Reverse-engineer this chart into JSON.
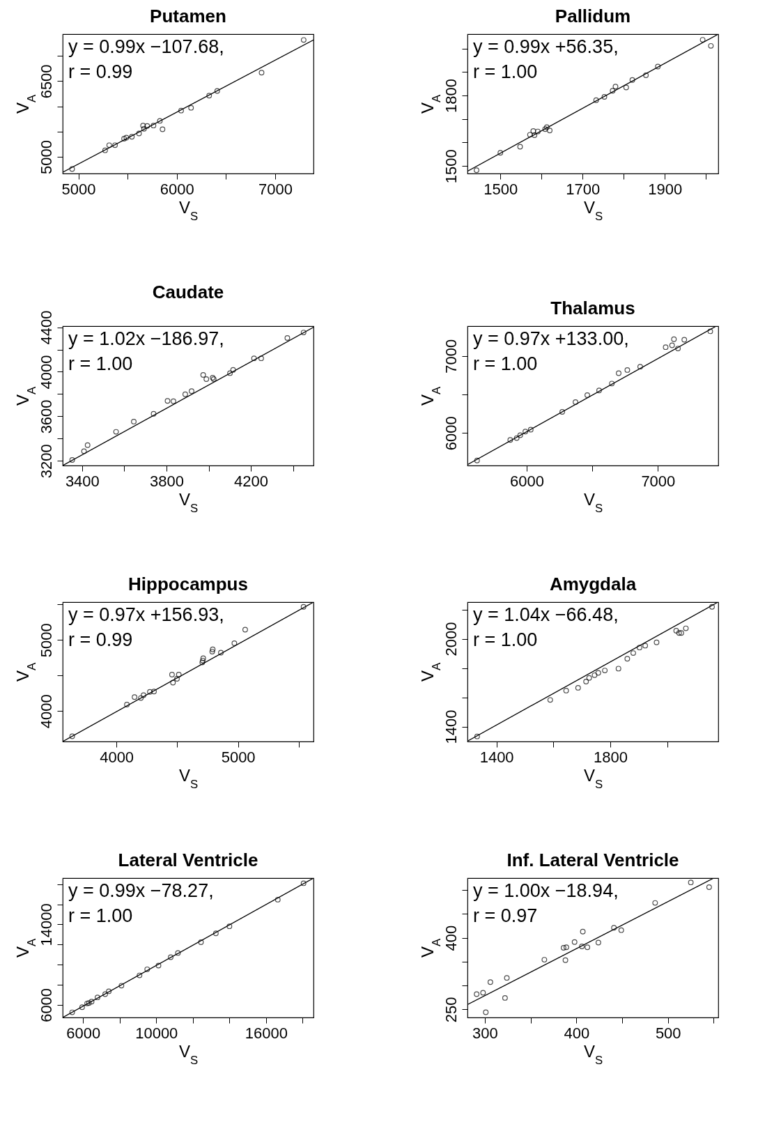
{
  "chart_data": [
    {
      "type": "scatter",
      "title": "Putamen",
      "xlabel": "V$_{S}$",
      "ylabel": "V$_{A}$",
      "annotations": [
        "y = 0.99x −107.68,",
        "r = 0.99"
      ],
      "xlim": [
        4840,
        7390
      ],
      "ylim": [
        4670,
        7430
      ],
      "xticks": [
        5000,
        {
          "value": 5500,
          "label": null
        },
        6000,
        {
          "value": 6500,
          "label": null
        },
        7000
      ],
      "yticks": [
        5000,
        {
          "value": 5500,
          "label": null
        },
        {
          "value": 6000,
          "label": null
        },
        6500,
        {
          "value": 7000,
          "label": null
        }
      ],
      "series": [
        {
          "type": "scatter",
          "marker": "circle",
          "color": "#000000",
          "x": [
            4936,
            5271,
            5313,
            5372,
            5464,
            5487,
            5543,
            5616,
            5657,
            5667,
            5699,
            5763,
            5828,
            5855,
            6044,
            6145,
            6329,
            6411,
            6862,
            7290
          ],
          "values": [
            4759,
            5130,
            5231,
            5231,
            5361,
            5380,
            5398,
            5463,
            5620,
            5556,
            5611,
            5620,
            5713,
            5546,
            5917,
            5972,
            6213,
            6306,
            6667,
            7315
          ]
        },
        {
          "type": "line",
          "color": "#000000",
          "x": [
            4840,
            7390
          ],
          "values": [
            4694,
            7315
          ]
        }
      ]
    },
    {
      "type": "scatter",
      "title": "Pallidum",
      "xlabel": "V$_{S}$",
      "ylabel": "V$_{A}$",
      "annotations": [
        "y = 0.99x +56.35,",
        "r = 1.00"
      ],
      "xlim": [
        1420,
        2030
      ],
      "ylim": [
        1468,
        2061
      ],
      "xticks": [
        1500,
        {
          "value": 1600,
          "label": null
        },
        1700,
        {
          "value": 1800,
          "label": null
        },
        1900,
        {
          "value": 2000,
          "label": null
        }
      ],
      "yticks": [
        1500,
        {
          "value": 1600,
          "label": null
        },
        {
          "value": 1700,
          "label": null
        },
        1800,
        {
          "value": 1900,
          "label": null
        },
        {
          "value": 2000,
          "label": null
        }
      ],
      "series": [
        {
          "type": "scatter",
          "marker": "circle",
          "color": "#000000",
          "x": [
            1442,
            1500,
            1548,
            1572,
            1580,
            1583,
            1591,
            1609,
            1613,
            1620,
            1733,
            1753,
            1773,
            1780,
            1806,
            1821,
            1854,
            1883,
            1992,
            2012
          ],
          "values": [
            1482,
            1556,
            1582,
            1633,
            1649,
            1631,
            1647,
            1657,
            1665,
            1651,
            1780,
            1794,
            1820,
            1838,
            1834,
            1866,
            1886,
            1923,
            2037,
            2011
          ]
        },
        {
          "type": "line",
          "color": "#000000",
          "x": [
            1420,
            2030
          ],
          "values": [
            1478,
            2061
          ]
        }
      ]
    },
    {
      "type": "scatter",
      "title": "Caudate",
      "xlabel": "V$_{S}$",
      "ylabel": "V$_{A}$",
      "annotations": [
        "y = 1.02x −186.97,",
        "r = 1.00"
      ],
      "xlim": [
        3308,
        4497
      ],
      "ylim": [
        3158,
        4410
      ],
      "xticks": [
        3400,
        {
          "value": 3600,
          "label": null
        },
        3800,
        {
          "value": 4000,
          "label": null
        },
        4200,
        {
          "value": 4400,
          "label": null
        }
      ],
      "yticks": [
        3200,
        {
          "value": 3400,
          "label": null
        },
        3600,
        {
          "value": 3800,
          "label": null
        },
        4000,
        {
          "value": 4200,
          "label": null
        },
        4400
      ],
      "series": [
        {
          "type": "scatter",
          "marker": "circle",
          "color": "#000000",
          "x": [
            3353,
            3409,
            3426,
            3561,
            3645,
            3739,
            3805,
            3833,
            3889,
            3919,
            3974,
            3989,
            4019,
            4024,
            4101,
            4116,
            4215,
            4249,
            4373,
            4450
          ],
          "values": [
            3208,
            3287,
            3341,
            3461,
            3553,
            3623,
            3739,
            3735,
            3798,
            3827,
            3972,
            3934,
            3947,
            3934,
            3988,
            4017,
            4121,
            4121,
            4304,
            4353
          ]
        },
        {
          "type": "line",
          "color": "#000000",
          "x": [
            3308,
            4497
          ],
          "values": [
            3158,
            4400
          ]
        }
      ]
    },
    {
      "type": "scatter",
      "title": "Thalamus",
      "xlabel": "V$_{S}$",
      "ylabel": "V$_{A}$",
      "annotations": [
        "y = 0.97x +133.00,",
        "r = 1.00"
      ],
      "xlim": [
        5549,
        7460
      ],
      "ylim": [
        5576,
        7388
      ],
      "xticks": [
        6000,
        {
          "value": 6500,
          "label": null
        },
        7000
      ],
      "yticks": [
        6000,
        {
          "value": 6500,
          "label": null
        },
        7000
      ],
      "series": [
        {
          "type": "scatter",
          "marker": "circle",
          "color": "#000000",
          "x": [
            5622,
            5875,
            5924,
            5951,
            5990,
            6031,
            6271,
            6372,
            6462,
            6552,
            6649,
            6701,
            6767,
            6865,
            7059,
            7108,
            7122,
            7153,
            7201,
            7399
          ],
          "values": [
            5642,
            5909,
            5933,
            5970,
            6018,
            6042,
            6273,
            6400,
            6491,
            6552,
            6642,
            6776,
            6818,
            6861,
            7115,
            7139,
            7218,
            7097,
            7212,
            7321
          ]
        },
        {
          "type": "line",
          "color": "#000000",
          "x": [
            5549,
            7444
          ],
          "values": [
            5588,
            7388
          ]
        }
      ]
    },
    {
      "type": "scatter",
      "title": "Hippocampus",
      "xlabel": "V$_{S}$",
      "ylabel": "V$_{A}$",
      "annotations": [
        "y = 0.97x +156.93,",
        "r = 0.99"
      ],
      "xlim": [
        3558,
        5621
      ],
      "ylim": [
        3572,
        5533
      ],
      "xticks": [
        4000,
        {
          "value": 4500,
          "label": null
        },
        5000,
        {
          "value": 5500,
          "label": null
        }
      ],
      "yticks": [
        4000,
        {
          "value": 4500,
          "label": null
        },
        5000,
        {
          "value": 5500,
          "label": null
        }
      ],
      "series": [
        {
          "type": "scatter",
          "marker": "circle",
          "color": "#000000",
          "x": [
            3636,
            4086,
            4149,
            4201,
            4223,
            4275,
            4309,
            4457,
            4465,
            4498,
            4513,
            4706,
            4710,
            4714,
            4788,
            4792,
            4859,
            4970,
            5059,
            5539
          ],
          "values": [
            3645,
            4092,
            4197,
            4184,
            4224,
            4270,
            4276,
            4513,
            4401,
            4454,
            4513,
            4684,
            4711,
            4743,
            4836,
            4868,
            4822,
            4954,
            5145,
            5467
          ]
        },
        {
          "type": "line",
          "color": "#000000",
          "x": [
            3558,
            5621
          ],
          "values": [
            3572,
            5533
          ]
        }
      ]
    },
    {
      "type": "scatter",
      "title": "Amygdala",
      "xlabel": "V$_{S}$",
      "ylabel": "V$_{A}$",
      "annotations": [
        "y = 1.04x −66.48,",
        "r = 1.00"
      ],
      "xlim": [
        1298,
        2180
      ],
      "ylim": [
        1298,
        2250
      ],
      "xticks": [
        1400,
        {
          "value": 1600,
          "label": null
        },
        1800,
        {
          "value": 2000,
          "label": null
        }
      ],
      "yticks": [
        1400,
        {
          "value": 1600,
          "label": null
        },
        {
          "value": 1800,
          "label": null
        },
        2000,
        {
          "value": 2200,
          "label": null
        }
      ],
      "series": [
        {
          "type": "scatter",
          "marker": "circle",
          "color": "#000000",
          "x": [
            1332,
            1589,
            1645,
            1687,
            1715,
            1726,
            1745,
            1758,
            1781,
            1829,
            1860,
            1881,
            1903,
            1923,
            1963,
            2032,
            2042,
            2050,
            2066,
            2158
          ],
          "values": [
            1333,
            1582,
            1646,
            1665,
            1707,
            1732,
            1751,
            1767,
            1783,
            1796,
            1863,
            1902,
            1940,
            1953,
            1975,
            2055,
            2039,
            2039,
            2071,
            2218
          ]
        },
        {
          "type": "line",
          "color": "#000000",
          "x": [
            1298,
            2179
          ],
          "values": [
            1301,
            2250
          ]
        }
      ]
    },
    {
      "type": "scatter",
      "title": "Lateral Ventricle",
      "xlabel": "V$_{S}$",
      "ylabel": "V$_{A}$",
      "annotations": [
        "y = 0.99x −78.27,",
        "r = 1.00"
      ],
      "xlim": [
        4889,
        18593
      ],
      "ylim": [
        4744,
        18605
      ],
      "xticks": [
        6000,
        {
          "value": 8000,
          "label": null
        },
        10000,
        {
          "value": 12000,
          "label": null
        },
        {
          "value": 14000,
          "label": null
        },
        16000,
        {
          "value": 18000,
          "label": null
        }
      ],
      "yticks": [
        6000,
        {
          "value": 8000,
          "label": null
        },
        {
          "value": 10000,
          "label": null
        },
        {
          "value": 12000,
          "label": null
        },
        14000,
        {
          "value": 16000,
          "label": null
        },
        {
          "value": 18000,
          "label": null
        }
      ],
      "series": [
        {
          "type": "scatter",
          "marker": "circle",
          "color": "#000000",
          "x": [
            5407,
            5951,
            6222,
            6321,
            6469,
            6790,
            7210,
            7407,
            8099,
            9086,
            9506,
            10123,
            10790,
            11185,
            12444,
            13259,
            13999,
            16642,
            18049
          ],
          "values": [
            5256,
            5767,
            6140,
            6186,
            6326,
            6744,
            7070,
            7349,
            7907,
            8930,
            9535,
            9907,
            10744,
            11163,
            12233,
            13116,
            13814,
            16465,
            18093
          ]
        },
        {
          "type": "line",
          "color": "#000000",
          "x": [
            4889,
            18593
          ],
          "values": [
            4744,
            18605
          ]
        }
      ]
    },
    {
      "type": "scatter",
      "title": "Inf. Lateral Ventricle",
      "xlabel": "V$_{S}$",
      "ylabel": "V$_{A}$",
      "annotations": [
        "y = 1.00x −18.94,",
        "r = 0.97"
      ],
      "xlim": [
        281,
        555
      ],
      "ylim": [
        233,
        525
      ],
      "xticks": [
        300,
        {
          "value": 350,
          "label": null
        },
        400,
        {
          "value": 450,
          "label": null
        },
        500,
        {
          "value": 550,
          "label": null
        }
      ],
      "yticks": [
        250,
        {
          "value": 300,
          "label": null
        },
        {
          "value": 350,
          "label": null
        },
        400,
        {
          "value": 450,
          "label": null
        },
        {
          "value": 500,
          "label": null
        }
      ],
      "series": [
        {
          "type": "scatter",
          "marker": "circle",
          "color": "#000000",
          "x": [
            291,
            298,
            301,
            306,
            322,
            324,
            365,
            386,
            388,
            389,
            398,
            406,
            407,
            412,
            424,
            441,
            449,
            486,
            525,
            545
          ],
          "values": [
            282,
            285,
            244,
            307,
            274,
            316,
            354,
            379,
            353,
            380,
            391,
            382,
            413,
            380,
            390,
            421,
            416,
            473,
            516,
            506
          ]
        },
        {
          "type": "line",
          "color": "#000000",
          "x": [
            281,
            550
          ],
          "values": [
            260,
            525
          ]
        }
      ]
    }
  ]
}
